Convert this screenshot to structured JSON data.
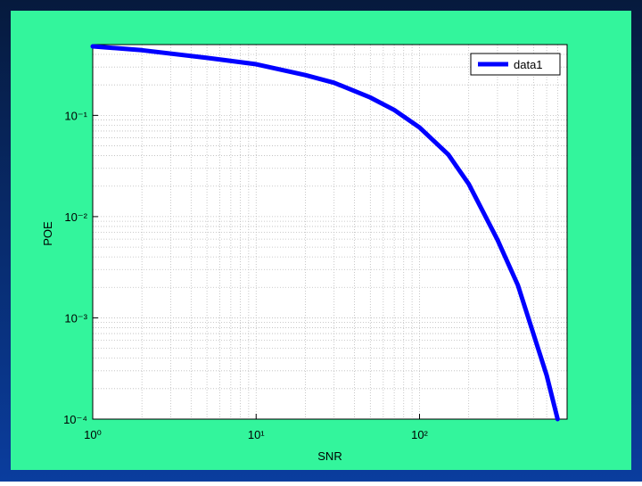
{
  "chart_data": {
    "type": "line",
    "xlabel": "SNR",
    "ylabel": "POE",
    "x": [
      1,
      2,
      5,
      10,
      20,
      30,
      50,
      70,
      100,
      150,
      200,
      300,
      400,
      500,
      600,
      700
    ],
    "series": [
      {
        "name": "data1",
        "color": "#0000ff",
        "values": [
          0.48,
          0.44,
          0.37,
          0.32,
          0.25,
          0.21,
          0.15,
          0.113,
          0.076,
          0.041,
          0.021,
          0.0059,
          0.0021,
          0.00068,
          0.00027,
          0.0001
        ]
      }
    ],
    "xscale": "log",
    "yscale": "log",
    "xlim": [
      1,
      800
    ],
    "ylim": [
      0.0001,
      0.5
    ],
    "xticks": [
      {
        "value": 1,
        "label": "10⁰"
      },
      {
        "value": 10,
        "label": "10¹"
      },
      {
        "value": 100,
        "label": "10²"
      }
    ],
    "yticks": [
      {
        "value": 0.0001,
        "label": "10⁻⁴"
      },
      {
        "value": 0.001,
        "label": "10⁻³"
      },
      {
        "value": 0.01,
        "label": "10⁻²"
      },
      {
        "value": 0.1,
        "label": "10⁻¹"
      }
    ],
    "grid": true,
    "legend": "upper right"
  }
}
